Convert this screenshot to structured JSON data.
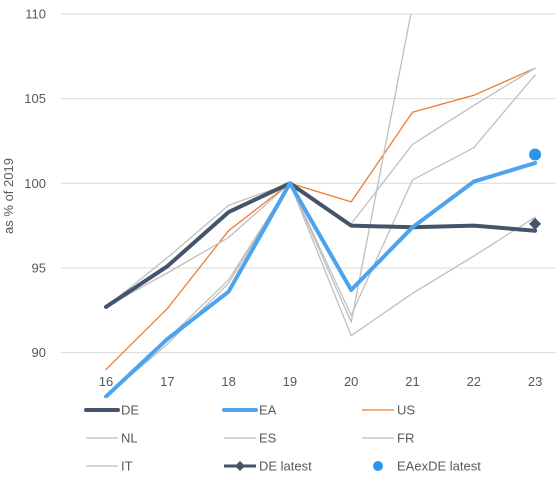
{
  "chart_data": {
    "type": "line",
    "title": "",
    "ylabel": "as % of 2019",
    "xlabel": "",
    "ylim": [
      88.5,
      110
    ],
    "yticks": [
      90,
      95,
      100,
      105,
      110
    ],
    "grid": "horizontal",
    "legend_position": "bottom",
    "categories": [
      "16",
      "17",
      "18",
      "19",
      "20",
      "21",
      "22",
      "23"
    ],
    "colors": {
      "DE": "#44546a",
      "EA": "#4da3ef",
      "US": "#ed7d31",
      "gray": "#bfbfbf",
      "DE latest": "#44546a",
      "EAexDE latest": "#2e96ea",
      "axis": "#bfbfbf",
      "text": "#595959"
    },
    "series": [
      {
        "name": "DE",
        "values": [
          92.7,
          95.1,
          98.3,
          100,
          97.5,
          97.4,
          97.5,
          97.2
        ],
        "style": "thick",
        "color_key": "DE"
      },
      {
        "name": "EA",
        "values": [
          87.4,
          90.8,
          93.6,
          100,
          93.7,
          97.4,
          100.1,
          101.2
        ],
        "style": "thick",
        "color_key": "EA"
      },
      {
        "name": "US",
        "values": [
          89.0,
          92.6,
          97.2,
          100,
          98.9,
          104.2,
          105.2,
          106.8
        ],
        "style": "thin",
        "color_key": "US"
      },
      {
        "name": "NL",
        "values": [
          92.7,
          95.6,
          98.7,
          100,
          97.6,
          102.3,
          104.6,
          106.8
        ],
        "style": "thin",
        "color_key": "gray"
      },
      {
        "name": "ES",
        "values": [
          87.4,
          90.5,
          94.1,
          100,
          91.0,
          93.5,
          95.7,
          98.0
        ],
        "style": "thin",
        "color_key": "gray"
      },
      {
        "name": "FR",
        "values": [
          92.7,
          94.7,
          96.8,
          100,
          92.2,
          100.2,
          102.1,
          106.4
        ],
        "style": "thin",
        "color_key": "gray"
      },
      {
        "name": "IT",
        "values": [
          87.4,
          90.8,
          94.3,
          100,
          91.8,
          110.5,
          null,
          null
        ],
        "style": "thin",
        "color_key": "gray"
      }
    ],
    "markers": [
      {
        "name": "DE latest",
        "x": "23",
        "y": 97.6,
        "shape": "diamond",
        "color_key": "DE latest"
      },
      {
        "name": "EAexDE latest",
        "x": "23",
        "y": 101.7,
        "shape": "circle",
        "color_key": "EAexDE latest"
      }
    ],
    "legend": [
      {
        "label": "DE",
        "kind": "thick",
        "color_key": "DE"
      },
      {
        "label": "EA",
        "kind": "thick",
        "color_key": "EA"
      },
      {
        "label": "US",
        "kind": "thin",
        "color_key": "US"
      },
      {
        "label": "NL",
        "kind": "thin",
        "color_key": "gray"
      },
      {
        "label": "ES",
        "kind": "thin",
        "color_key": "gray"
      },
      {
        "label": "FR",
        "kind": "thin",
        "color_key": "gray"
      },
      {
        "label": "IT",
        "kind": "thin",
        "color_key": "gray"
      },
      {
        "label": "DE latest",
        "kind": "diamond-line",
        "color_key": "DE latest"
      },
      {
        "label": "EAexDE latest",
        "kind": "circle",
        "color_key": "EAexDE latest"
      }
    ]
  }
}
